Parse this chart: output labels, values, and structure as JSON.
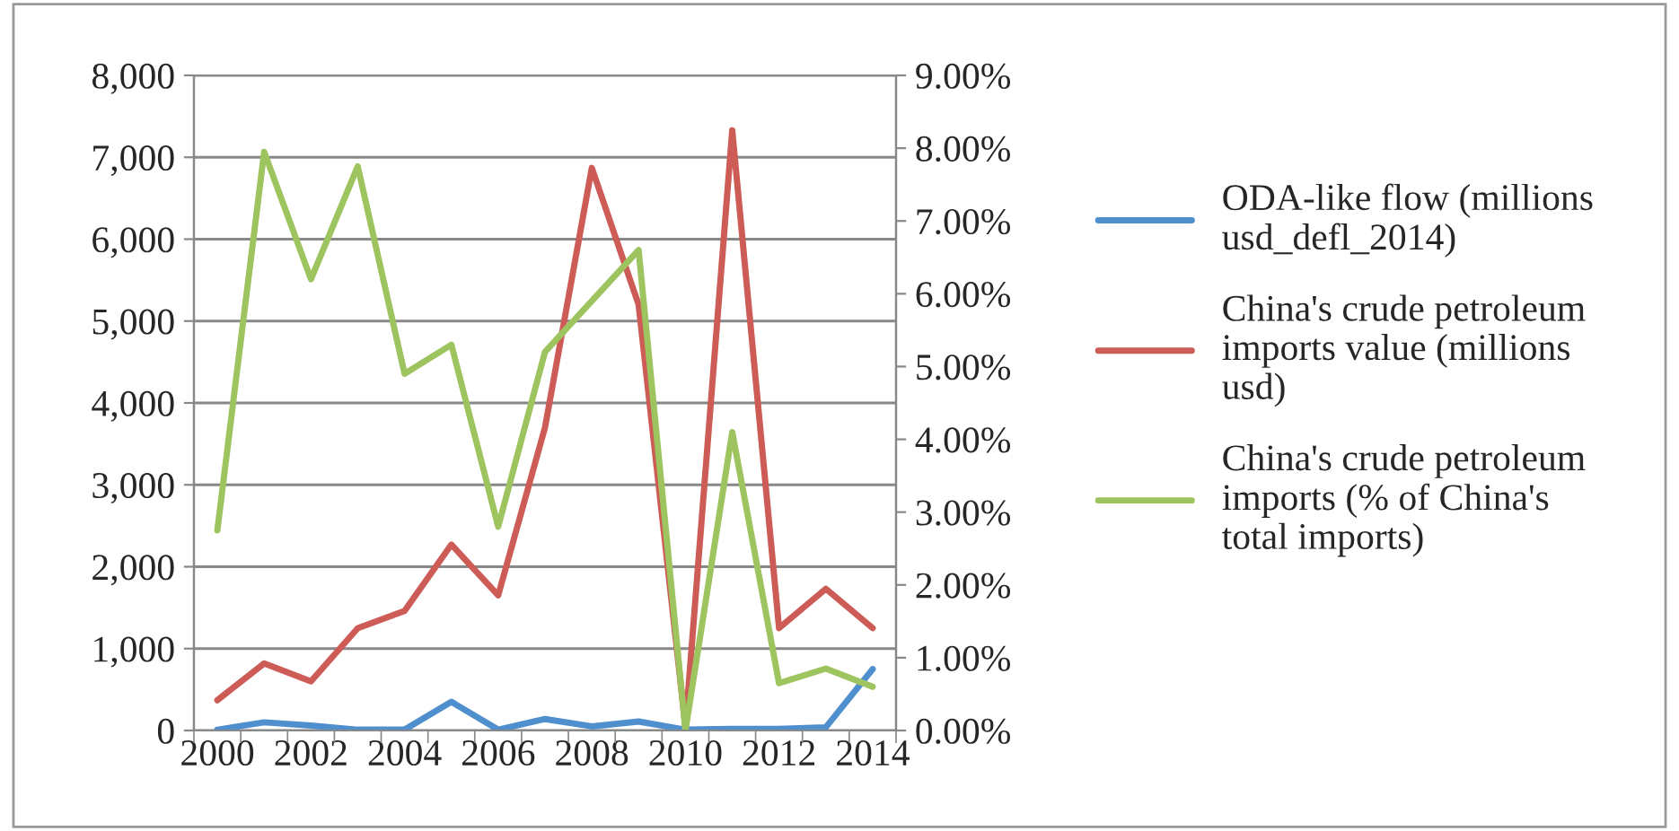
{
  "chart_data": {
    "type": "line",
    "categories": [
      "2000",
      null,
      "2002",
      null,
      "2004",
      null,
      "2006",
      null,
      "2008",
      null,
      "2010",
      null,
      "2012",
      null,
      "2014"
    ],
    "series": [
      {
        "name": "ODA-like flow (millions usd_defl_2014)",
        "color": "#4f8fce",
        "values": [
          10,
          100,
          60,
          10,
          10,
          350,
          10,
          140,
          50,
          110,
          10,
          20,
          20,
          40,
          750
        ]
      },
      {
        "name": "China's crude petroleum imports value (millions usd)",
        "color": "#cd5c57",
        "values": [
          370,
          820,
          600,
          1250,
          1460,
          2270,
          1650,
          3700,
          6870,
          5200,
          50,
          7330,
          1250,
          1730,
          1250
        ]
      },
      {
        "name": "China's crude petroleum imports (% of China's total imports)",
        "color": "#9dc45f",
        "axis": "y2",
        "values": [
          2.75,
          7.95,
          6.2,
          7.75,
          4.9,
          5.3,
          2.8,
          5.2,
          5.9,
          6.6,
          0.0,
          4.1,
          0.65,
          0.85,
          0.6
        ]
      }
    ],
    "ylim": [
      0,
      8000
    ],
    "yticks": [
      {
        "value": 0,
        "label": "0"
      },
      {
        "value": 1000,
        "label": "1,000"
      },
      {
        "value": 2000,
        "label": "2,000"
      },
      {
        "value": 3000,
        "label": "3,000"
      },
      {
        "value": 4000,
        "label": "4,000"
      },
      {
        "value": 5000,
        "label": "5,000"
      },
      {
        "value": 6000,
        "label": "6,000"
      },
      {
        "value": 7000,
        "label": "7,000"
      },
      {
        "value": 8000,
        "label": "8,000"
      }
    ],
    "y2lim": [
      0,
      9
    ],
    "y2ticks": [
      {
        "value": 0,
        "label": "0.00%"
      },
      {
        "value": 1,
        "label": "1.00%"
      },
      {
        "value": 2,
        "label": "2.00%"
      },
      {
        "value": 3,
        "label": "3.00%"
      },
      {
        "value": 4,
        "label": "4.00%"
      },
      {
        "value": 5,
        "label": "5.00%"
      },
      {
        "value": 6,
        "label": "6.00%"
      },
      {
        "value": 7,
        "label": "7.00%"
      },
      {
        "value": 8,
        "label": "8.00%"
      },
      {
        "value": 9,
        "label": "9.00%"
      }
    ],
    "grid": "y",
    "legend": "right",
    "marker": "none",
    "line_style": "solid"
  }
}
